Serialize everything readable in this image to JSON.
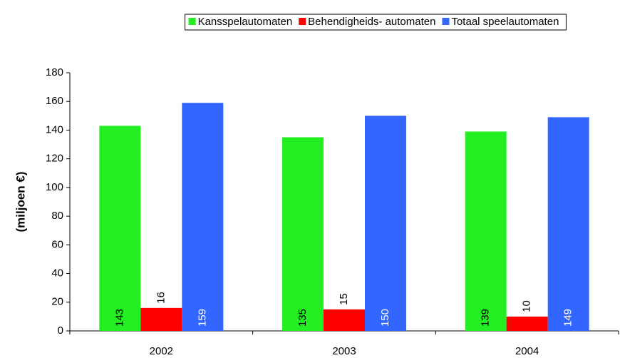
{
  "chart_data": {
    "type": "bar",
    "y_label": "(miljoen €)",
    "categories": [
      "2002",
      "2003",
      "2004"
    ],
    "series": [
      {
        "name": "Kansspelautomaten",
        "color": "#22ee22",
        "values": [
          143,
          135,
          139
        ]
      },
      {
        "name": "Behendigheids- automaten",
        "color": "#ff0000",
        "values": [
          16,
          15,
          10
        ]
      },
      {
        "name": "Totaal speelautomaten",
        "color": "#3366ff",
        "values": [
          159,
          150,
          149
        ]
      }
    ],
    "ylim": [
      0,
      180
    ],
    "yticks": [
      0,
      20,
      40,
      60,
      80,
      100,
      120,
      140,
      160,
      180
    ],
    "legend": "top",
    "grid": false
  }
}
